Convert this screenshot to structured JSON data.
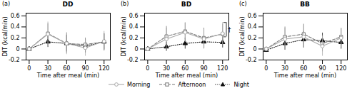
{
  "chart_data": [
    {
      "type": "line",
      "title": "DD",
      "annotations": [
        {
          "text": "(a)"
        }
      ],
      "x": [
        0,
        30,
        60,
        90,
        120
      ],
      "series": [
        {
          "name": "Morning",
          "color": "#aaaaaa",
          "marker": "open-circle",
          "line_style": "solid",
          "values": [
            0,
            0.27,
            0.1,
            0.02,
            0.14
          ],
          "errors": [
            0.03,
            0.22,
            0.2,
            0.15,
            0.18
          ]
        },
        {
          "name": "Afternoon",
          "color": "#777777",
          "marker": "open-square",
          "line_style": "dashed",
          "values": [
            0,
            0.28,
            0.1,
            0.08,
            0.13
          ],
          "errors": [
            0.03,
            0.18,
            0.18,
            0.12,
            0.14
          ]
        },
        {
          "name": "Night",
          "color": "#111111",
          "marker": "triangle",
          "line_style": "dotted",
          "values": [
            0,
            0.13,
            0.1,
            0.05,
            0.13
          ],
          "errors": [
            0.03,
            0.1,
            0.15,
            0.12,
            0.15
          ]
        }
      ],
      "xlim": [
        -5,
        130
      ],
      "xticks": [
        0,
        30,
        60,
        90,
        120
      ],
      "ylim": [
        -0.2,
        0.65
      ],
      "yticks": [
        -0.2,
        0,
        0.2,
        0.4,
        0.6
      ],
      "xlabel": "Time after meal (min)",
      "ylabel": "DIT (kcal/min)",
      "grid": false,
      "legend": "bottom"
    },
    {
      "type": "line",
      "title": "BD",
      "annotations": [
        {
          "text": "(b)"
        },
        {
          "text": "†",
          "x": [
            122,
            126
          ],
          "y": [
            0.22,
            0.48
          ]
        }
      ],
      "x": [
        0,
        30,
        60,
        90,
        120
      ],
      "series": [
        {
          "name": "Morning",
          "color": "#aaaaaa",
          "marker": "open-circle",
          "line_style": "solid",
          "values": [
            0,
            0.18,
            0.3,
            0.18,
            0.28
          ],
          "errors": [
            0.04,
            0.2,
            0.18,
            0.18,
            0.2
          ]
        },
        {
          "name": "Afternoon",
          "color": "#777777",
          "marker": "open-square",
          "line_style": "dashed",
          "values": [
            0,
            0.23,
            0.32,
            0.2,
            0.27
          ],
          "errors": [
            0.04,
            0.18,
            0.15,
            0.18,
            0.18
          ]
        },
        {
          "name": "Night",
          "color": "#111111",
          "marker": "triangle",
          "line_style": "dotted",
          "values": [
            0,
            0.04,
            0.1,
            0.13,
            0.12
          ],
          "errors": [
            0.04,
            0.08,
            0.1,
            0.12,
            0.1
          ]
        }
      ],
      "xlim": [
        -5,
        130
      ],
      "xticks": [
        0,
        30,
        60,
        90,
        120
      ],
      "ylim": [
        -0.2,
        0.65
      ],
      "yticks": [
        -0.2,
        0,
        0.2,
        0.4,
        0.6
      ],
      "xlabel": "Time after meal (min)",
      "ylabel": "DIT (kcal/min)",
      "grid": false,
      "legend": "bottom"
    },
    {
      "type": "line",
      "title": "BB",
      "annotations": [
        {
          "text": "(c)"
        }
      ],
      "x": [
        0,
        30,
        60,
        90,
        120
      ],
      "series": [
        {
          "name": "Morning",
          "color": "#aaaaaa",
          "marker": "open-circle",
          "line_style": "solid",
          "values": [
            0,
            0.18,
            0.22,
            0.05,
            0.2
          ],
          "errors": [
            0.04,
            0.2,
            0.2,
            0.18,
            0.18
          ]
        },
        {
          "name": "Afternoon",
          "color": "#777777",
          "marker": "open-square",
          "line_style": "dashed",
          "values": [
            0,
            0.22,
            0.27,
            0.1,
            0.22
          ],
          "errors": [
            0.04,
            0.18,
            0.18,
            0.15,
            0.15
          ]
        },
        {
          "name": "Night",
          "color": "#111111",
          "marker": "triangle",
          "line_style": "dotted",
          "values": [
            -0.02,
            0.1,
            0.17,
            0.15,
            0.12
          ],
          "errors": [
            0.04,
            0.12,
            0.15,
            0.14,
            0.12
          ]
        }
      ],
      "xlim": [
        -5,
        130
      ],
      "xticks": [
        0,
        30,
        60,
        90,
        120
      ],
      "ylim": [
        -0.2,
        0.65
      ],
      "yticks": [
        -0.2,
        0,
        0.2,
        0.4,
        0.6
      ],
      "xlabel": "Time after meal (min)",
      "ylabel": "DIT (kcal/min)",
      "grid": false,
      "legend": "bottom"
    }
  ]
}
